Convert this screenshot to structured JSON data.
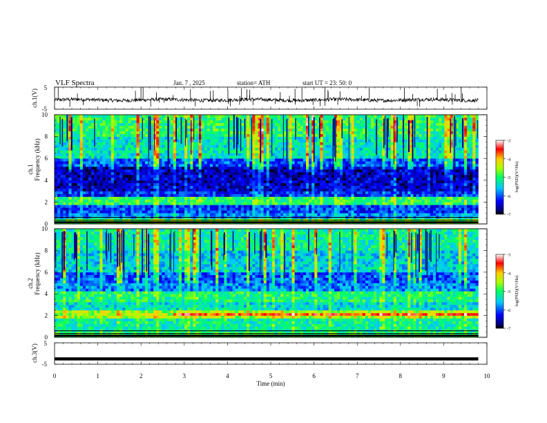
{
  "header": {
    "title": "VLF  Spectra",
    "date": "Jan.  7  , 2025",
    "station": "station= ATH",
    "start": "start  UT  =    23: 50: 0"
  },
  "chart_data": [
    {
      "type": "line",
      "panel": "ch1-waveform",
      "ylabel": "ch.1(V)",
      "ylim": [
        -5,
        5
      ],
      "ytick_labels": [
        "5",
        "-5"
      ],
      "x_range_min": [
        0,
        9.8
      ],
      "baseline_value": -0.8,
      "note_spikes": "frequent impulsive spikes (sferics) up to about +5 V and down to about -3 V"
    },
    {
      "type": "heatmap",
      "panel": "ch1-spectrogram",
      "ylabel_line1": "ch.1",
      "ylabel_line2": "Frequency (kHz)",
      "ylim": [
        0,
        10
      ],
      "ytick_labels": [
        "0",
        "2",
        "4",
        "6",
        "8",
        "10"
      ],
      "x_range_min": [
        0,
        9.8
      ],
      "colorbar": {
        "label": "log(PSD)(V²/Hz)",
        "range": [
          -7,
          -3
        ],
        "tick_labels": [
          "-3",
          "-4",
          "-5",
          "-6",
          "-7"
        ]
      }
    },
    {
      "type": "heatmap",
      "panel": "ch2-spectrogram",
      "ylabel_line1": "ch.2",
      "ylabel_line2": "Frequency (kHz)",
      "ylim": [
        0,
        10
      ],
      "ytick_labels": [
        "0",
        "2",
        "4",
        "6",
        "8",
        "10"
      ],
      "x_range_min": [
        0,
        9.8
      ],
      "colorbar": {
        "label": "log(PSD)(V²/Hz)",
        "range": [
          -7,
          -3
        ],
        "tick_labels": [
          "-3",
          "-4",
          "-5",
          "-6",
          "-7"
        ]
      }
    },
    {
      "type": "line",
      "panel": "ch3-waveform",
      "ylabel": "ch.3(V)",
      "ylim": [
        -5,
        5
      ],
      "ytick_labels": [
        "5",
        "-5"
      ],
      "x_range_min": [
        0,
        9.8
      ],
      "baseline_value": -2.5,
      "note_spikes": "flat saturated trace"
    }
  ],
  "xaxis": {
    "label": "Time  (min)",
    "range": [
      0,
      10
    ],
    "tick_labels": [
      "0",
      "1",
      "2",
      "3",
      "4",
      "5",
      "6",
      "7",
      "8",
      "9",
      "10"
    ]
  }
}
